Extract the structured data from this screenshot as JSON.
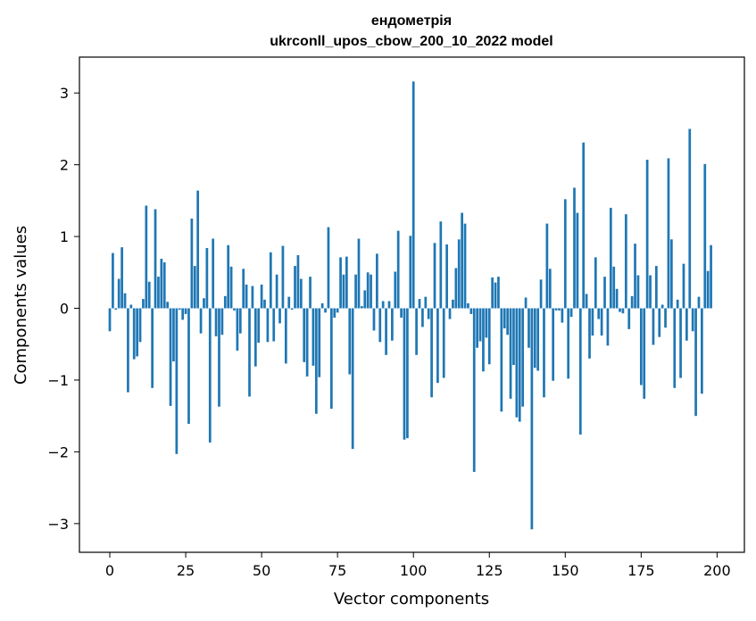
{
  "chart_data": {
    "type": "bar",
    "title_line1": "ендометрія",
    "title_line2": "ukrconll_upos_cbow_200_10_2022 model",
    "xlabel": "Vector components",
    "ylabel": "Components values",
    "xlim": [
      -10,
      209
    ],
    "ylim": [
      -3.4,
      3.5
    ],
    "xticks": [
      0,
      25,
      50,
      75,
      100,
      125,
      150,
      175,
      200
    ],
    "yticks": [
      -3,
      -2,
      -1,
      0,
      1,
      2,
      3
    ],
    "xtick_labels": [
      "0",
      "25",
      "50",
      "75",
      "100",
      "125",
      "150",
      "175",
      "200"
    ],
    "ytick_labels": [
      "−3",
      "−2",
      "−1",
      "0",
      "1",
      "2",
      "3"
    ],
    "bar_color": "#1f77b4",
    "grid": false,
    "values": [
      -0.32,
      0.77,
      -0.02,
      0.41,
      0.85,
      0.21,
      -1.17,
      0.05,
      -0.71,
      -0.67,
      -0.47,
      0.13,
      1.43,
      0.37,
      -1.11,
      1.38,
      0.44,
      0.69,
      0.64,
      0.09,
      -1.36,
      -0.74,
      -2.03,
      -0.02,
      -0.16,
      -0.08,
      -1.61,
      1.25,
      0.59,
      1.64,
      -0.35,
      0.14,
      0.84,
      -1.87,
      0.97,
      -0.39,
      -1.37,
      -0.37,
      0.17,
      0.88,
      0.58,
      -0.03,
      -0.59,
      -0.35,
      0.55,
      0.33,
      -1.23,
      0.31,
      -0.81,
      -0.48,
      0.33,
      0.12,
      -0.47,
      0.78,
      -0.46,
      0.47,
      -0.21,
      0.87,
      -0.77,
      0.16,
      -0.02,
      0.59,
      0.74,
      0.41,
      -0.75,
      -0.95,
      0.44,
      -0.8,
      -1.47,
      -0.96,
      0.07,
      -0.06,
      1.13,
      -1.4,
      -0.13,
      -0.06,
      0.71,
      0.47,
      0.72,
      -0.92,
      -1.96,
      0.47,
      0.97,
      0.03,
      0.25,
      0.5,
      0.47,
      -0.31,
      0.76,
      -0.47,
      0.1,
      -0.65,
      0.1,
      -0.45,
      0.51,
      1.08,
      -0.13,
      -1.83,
      -1.81,
      1.01,
      3.16,
      -0.65,
      0.13,
      -0.26,
      0.16,
      -0.15,
      -1.24,
      0.91,
      -1.04,
      1.21,
      -0.97,
      0.89,
      -0.15,
      0.12,
      0.56,
      0.96,
      1.33,
      1.18,
      0.07,
      -0.08,
      -2.28,
      -0.55,
      -0.46,
      -0.88,
      -0.41,
      -0.78,
      0.43,
      0.36,
      0.44,
      -1.44,
      -0.28,
      -0.37,
      -1.26,
      -0.79,
      -1.52,
      -1.58,
      -1.37,
      0.15,
      -0.55,
      -3.08,
      -0.83,
      -0.87,
      0.4,
      -1.24,
      1.18,
      0.55,
      -1.01,
      -0.03,
      -0.03,
      -0.2,
      1.52,
      -0.98,
      -0.12,
      1.68,
      1.33,
      -1.76,
      2.31,
      0.2,
      -0.7,
      -0.38,
      0.71,
      -0.15,
      -0.38,
      0.44,
      -0.52,
      1.4,
      0.58,
      0.27,
      -0.05,
      -0.07,
      1.31,
      -0.29,
      0.17,
      0.9,
      0.46,
      -1.07,
      -1.26,
      2.07,
      0.46,
      -0.51,
      0.59,
      -0.4,
      0.05,
      -0.27,
      2.09,
      0.96,
      -1.11,
      0.12,
      -0.97,
      0.62,
      -0.45,
      2.5,
      -0.32,
      -1.5,
      0.16,
      -1.19,
      2.01,
      0.52,
      0.88
    ]
  }
}
